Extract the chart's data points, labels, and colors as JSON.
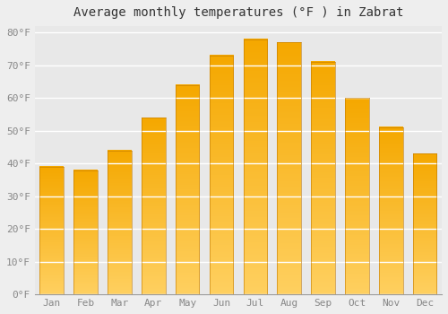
{
  "title": "Average monthly temperatures (°F ) in Zabrat",
  "months": [
    "Jan",
    "Feb",
    "Mar",
    "Apr",
    "May",
    "Jun",
    "Jul",
    "Aug",
    "Sep",
    "Oct",
    "Nov",
    "Dec"
  ],
  "values": [
    39,
    38,
    44,
    54,
    64,
    73,
    78,
    77,
    71,
    60,
    51,
    43
  ],
  "color_bottom": "#FFD060",
  "color_top": "#F5A800",
  "ylim": [
    0,
    82
  ],
  "yticks": [
    0,
    10,
    20,
    30,
    40,
    50,
    60,
    70,
    80
  ],
  "ytick_labels": [
    "0°F",
    "10°F",
    "20°F",
    "30°F",
    "40°F",
    "50°F",
    "60°F",
    "70°F",
    "80°F"
  ],
  "background_color": "#eeeeee",
  "plot_bg_color": "#e8e8e8",
  "grid_color": "#ffffff",
  "title_fontsize": 10,
  "tick_fontsize": 8,
  "bar_width": 0.7
}
